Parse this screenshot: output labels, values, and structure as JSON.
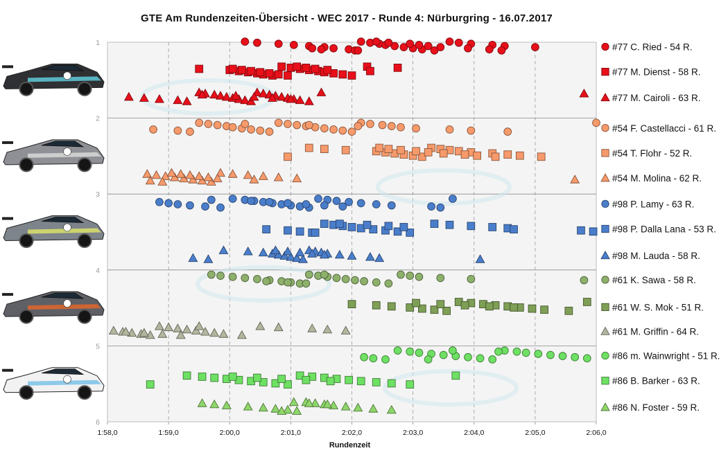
{
  "title": "GTE Am Rundenzeiten-Übersicht  - WEC 2017 - Runde 4: Nürburgring - 16.07.2017",
  "chart_data": {
    "type": "scatter",
    "title": "GTE Am Rundenzeiten-Übersicht  - WEC 2017 - Runde 4: Nürburgring - 16.07.2017",
    "xlabel": "Rundenzeit",
    "ylabel": "",
    "x_unit": "seconds",
    "xlim": [
      118,
      126
    ],
    "ylim": [
      1,
      6
    ],
    "y_reversed": true,
    "grid": "vertical dashed at each second, horizontal solid at integer y",
    "legend_position": "right",
    "x_ticks": [
      {
        "value": 118,
        "label": "1:58,0"
      },
      {
        "value": 119,
        "label": "1:59,0"
      },
      {
        "value": 120,
        "label": "2:00,0"
      },
      {
        "value": 121,
        "label": "2:01,0"
      },
      {
        "value": 122,
        "label": "2:02,0"
      },
      {
        "value": 123,
        "label": "2:03,0"
      },
      {
        "value": 124,
        "label": "2:04,0"
      },
      {
        "value": 125,
        "label": "2:05,0"
      },
      {
        "value": 126,
        "label": "2:06,0"
      }
    ],
    "y_ticks": [
      "1",
      "2",
      "3",
      "4",
      "5",
      "6"
    ],
    "cars": [
      "#77",
      "#54",
      "#98",
      "#61",
      "#86"
    ],
    "series": [
      {
        "name": "#77 C. Ried - 54 R.",
        "color": "#e8101a",
        "shape": "circle",
        "y": 1.05,
        "points": [
          120.25,
          120.45,
          120.8,
          121.05,
          121.3,
          121.55,
          121.7,
          121.95,
          122.05,
          122.15,
          122.3,
          122.45,
          122.55,
          122.7,
          122.85,
          123.0,
          123.15,
          123.35,
          123.6,
          123.75,
          123.95,
          124.3,
          124.5,
          125.0,
          121.35,
          121.5,
          122.1,
          122.4,
          122.6,
          122.95,
          123.1,
          123.25,
          123.45,
          123.9,
          124.25,
          124.45
        ]
      },
      {
        "name": "#77 M. Dienst - 58 R.",
        "color": "#e8101a",
        "shape": "square",
        "y": 1.38,
        "points": [
          119.5,
          120.0,
          120.15,
          120.3,
          120.45,
          120.55,
          120.7,
          120.85,
          121.0,
          121.15,
          121.3,
          121.45,
          121.55,
          121.7,
          121.85,
          122.0,
          122.25,
          122.75,
          120.05,
          120.2,
          120.35,
          120.5,
          120.65,
          120.8,
          120.95,
          121.1,
          121.25,
          121.4,
          121.6,
          122.3
        ]
      },
      {
        "name": "#77 M. Cairoli - 63 R.",
        "color": "#e8101a",
        "shape": "triangle",
        "y": 1.72,
        "points": [
          118.35,
          118.6,
          118.85,
          119.15,
          119.3,
          119.5,
          119.6,
          119.75,
          119.85,
          119.95,
          120.05,
          120.15,
          120.25,
          120.35,
          120.45,
          120.55,
          120.65,
          120.75,
          120.85,
          120.95,
          121.05,
          121.15,
          121.3,
          121.5,
          125.8,
          119.55,
          120.1,
          120.4,
          120.7,
          121.0
        ]
      },
      {
        "name": "#54 F. Castellacci - 61 R.",
        "color": "#f79a6b",
        "shape": "circle",
        "y": 2.12,
        "points": [
          118.75,
          119.15,
          119.35,
          119.5,
          119.65,
          119.8,
          119.95,
          120.05,
          120.2,
          120.35,
          120.5,
          120.65,
          120.8,
          120.95,
          121.1,
          121.25,
          121.4,
          121.55,
          121.7,
          121.85,
          122.0,
          122.15,
          122.3,
          122.5,
          122.65,
          122.8,
          123.05,
          123.6,
          123.95,
          124.55,
          126.0,
          120.25,
          121.3,
          122.1
        ]
      },
      {
        "name": "#54 T. Flohr - 52 R.",
        "color": "#f79a6b",
        "shape": "square",
        "y": 2.45,
        "points": [
          120.95,
          121.3,
          121.55,
          121.9,
          122.4,
          122.55,
          122.7,
          122.85,
          123.0,
          123.15,
          123.3,
          123.45,
          123.6,
          123.75,
          123.95,
          124.3,
          124.55,
          124.75,
          125.1,
          122.45,
          122.6,
          122.8,
          123.05,
          123.25,
          123.5,
          123.85,
          124.05,
          124.35
        ]
      },
      {
        "name": "#54 M. Molina - 62 R.",
        "color": "#f79a6b",
        "shape": "triangle",
        "y": 2.78,
        "points": [
          118.65,
          118.8,
          118.95,
          119.1,
          119.25,
          119.4,
          119.55,
          119.7,
          119.85,
          120.05,
          120.3,
          120.55,
          120.8,
          121.1,
          125.65,
          118.7,
          118.9,
          119.05,
          119.2,
          119.35,
          119.5,
          119.65,
          119.8,
          120.4
        ]
      },
      {
        "name": "#98 P. Lamy - 63 R.",
        "color": "#4a7ecb",
        "shape": "circle",
        "y": 3.12,
        "points": [
          118.85,
          119.0,
          119.15,
          119.35,
          119.6,
          119.85,
          120.05,
          120.25,
          120.4,
          120.55,
          120.7,
          120.85,
          121.0,
          121.15,
          121.3,
          121.45,
          121.6,
          121.75,
          121.95,
          122.15,
          122.4,
          122.65,
          123.3,
          123.45,
          123.65,
          119.7,
          120.35,
          120.65,
          120.95,
          121.25,
          121.55,
          121.85
        ]
      },
      {
        "name": "#98 P. Dalla Lana - 53 R.",
        "color": "#4a7ecb",
        "shape": "square",
        "y": 3.45,
        "points": [
          120.6,
          120.95,
          121.15,
          121.35,
          121.55,
          121.7,
          121.85,
          122.0,
          122.15,
          122.35,
          122.55,
          122.75,
          122.95,
          123.35,
          123.6,
          123.95,
          124.3,
          124.55,
          124.65,
          125.75,
          125.95,
          121.4,
          121.8,
          122.25,
          122.6,
          122.85
        ]
      },
      {
        "name": "#98 M. Lauda - 58 R.",
        "color": "#4a7ecb",
        "shape": "triangle",
        "y": 3.8,
        "points": [
          119.4,
          119.65,
          119.9,
          120.3,
          120.55,
          120.7,
          120.8,
          120.9,
          121.0,
          121.1,
          121.2,
          121.3,
          121.4,
          121.5,
          121.6,
          121.8,
          122.0,
          122.3,
          122.45,
          124.1,
          120.75,
          120.95,
          121.15,
          121.35,
          121.55
        ]
      },
      {
        "name": "#61 K. Sawa - 58 R.",
        "color": "#8db06b",
        "shape": "circle",
        "y": 4.12,
        "points": [
          119.7,
          119.85,
          120.05,
          120.25,
          120.45,
          120.65,
          120.85,
          121.0,
          121.15,
          121.3,
          121.45,
          121.6,
          121.75,
          121.9,
          122.05,
          122.2,
          122.4,
          122.6,
          122.8,
          122.95,
          123.1,
          123.45,
          123.95,
          125.8,
          120.6,
          120.95,
          121.25,
          121.55
        ]
      },
      {
        "name": "#61 W. S. Mok - 51 R.",
        "color": "#7e9f55",
        "shape": "square",
        "y": 4.48,
        "points": [
          122.0,
          122.4,
          122.65,
          122.95,
          123.15,
          123.35,
          123.55,
          123.75,
          123.95,
          124.15,
          124.35,
          124.55,
          124.75,
          124.95,
          125.15,
          125.55,
          125.85,
          123.05,
          123.45,
          123.85,
          124.25,
          124.65
        ]
      },
      {
        "name": "#61 M. Griffin - 64 R.",
        "color": "#b3b69e",
        "shape": "triangle",
        "y": 4.8,
        "points": [
          118.1,
          118.25,
          118.4,
          118.55,
          118.7,
          118.85,
          119.0,
          119.15,
          119.3,
          119.45,
          119.6,
          119.75,
          119.9,
          120.2,
          120.5,
          120.8,
          121.35,
          121.6,
          121.9,
          118.3,
          118.6,
          118.9,
          119.2,
          119.5
        ]
      },
      {
        "name": "#86 m. Wainwright - 51 R.",
        "color": "#6ee063",
        "shape": "circle",
        "y": 5.12,
        "points": [
          122.2,
          122.35,
          122.55,
          122.75,
          122.95,
          123.1,
          123.3,
          123.5,
          123.7,
          123.9,
          124.1,
          124.3,
          124.5,
          124.7,
          124.85,
          125.05,
          125.25,
          125.45,
          125.65,
          125.85,
          123.25,
          123.65,
          124.4
        ]
      },
      {
        "name": "#86 B. Barker - 63 R.",
        "color": "#6ee063",
        "shape": "square",
        "y": 5.45,
        "points": [
          118.7,
          119.3,
          119.55,
          119.75,
          119.95,
          120.15,
          120.35,
          120.55,
          120.75,
          120.95,
          121.15,
          121.35,
          121.55,
          121.75,
          121.95,
          122.15,
          122.4,
          122.65,
          122.95,
          123.7,
          120.05,
          120.45,
          120.85,
          121.25,
          121.65
        ]
      },
      {
        "name": "#86 N. Foster - 59 R.",
        "color": "#8ed66a",
        "shape": "triangle",
        "y": 5.8,
        "points": [
          119.55,
          119.75,
          119.95,
          120.3,
          120.55,
          120.75,
          120.95,
          121.1,
          121.25,
          121.4,
          121.55,
          121.7,
          121.9,
          122.1,
          122.35,
          122.65,
          120.85,
          121.05,
          121.3,
          121.6
        ]
      }
    ]
  }
}
